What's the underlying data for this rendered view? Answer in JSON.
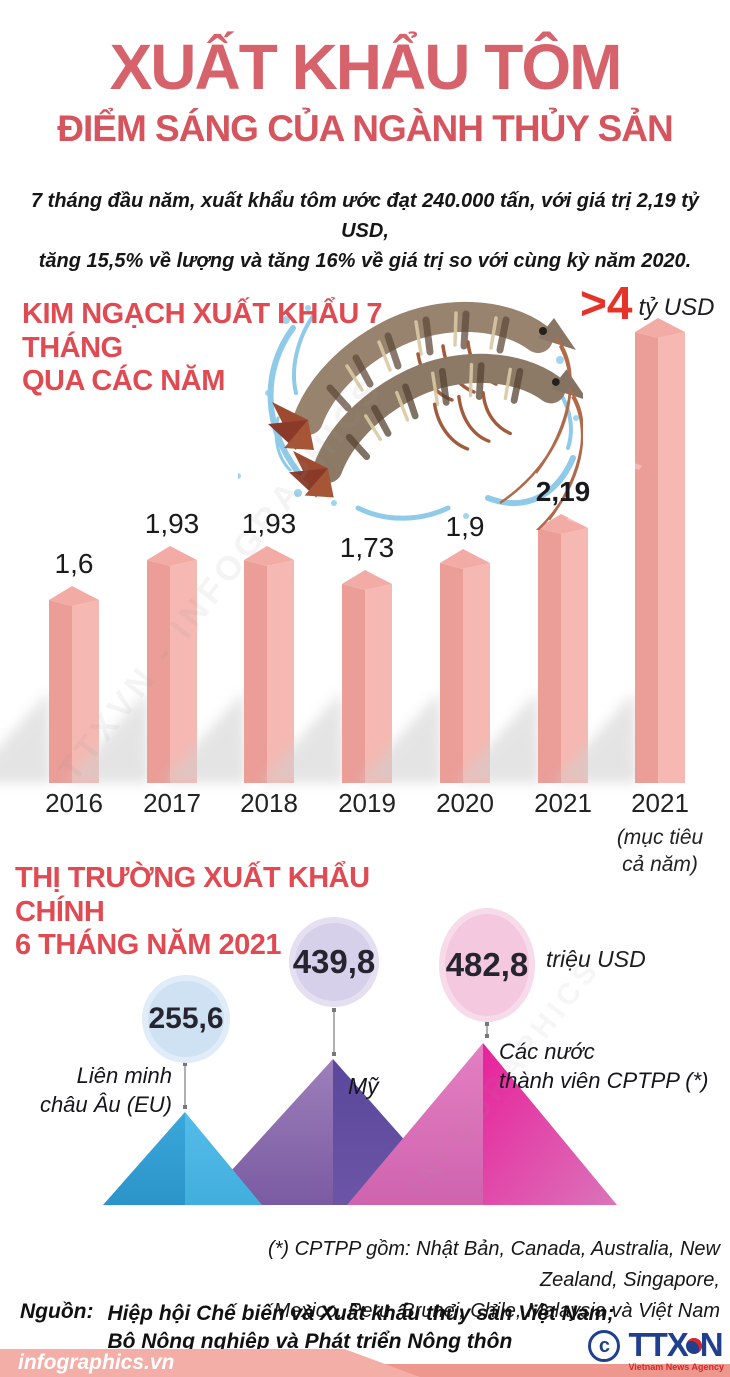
{
  "title": {
    "main": "XUẤT KHẨU TÔM",
    "subtitle": "ĐIỂM SÁNG CỦA NGÀNH THỦY SẢN"
  },
  "intro_lines": [
    "7 tháng đầu năm, xuất khẩu tôm ước đạt 240.000 tấn, với giá trị 2,19 tỷ USD,",
    "tăng 15,5% về lượng và tăng 16% về giá trị so với cùng kỳ năm 2020."
  ],
  "sections": {
    "bars": {
      "header_lines": [
        "KIM NGẠCH XUẤT KHẨU 7 THÁNG",
        "QUA CÁC NĂM"
      ],
      "target_value": ">4",
      "target_unit": "tỷ USD",
      "target_sublabel_lines": [
        "(mục tiêu",
        "cả năm)"
      ]
    },
    "markets": {
      "header_lines": [
        "THỊ TRƯỜNG XUẤT KHẨU CHÍNH",
        "6 THÁNG NĂM 2021"
      ],
      "points": [
        {
          "value": "255,6",
          "label_lines": [
            "Liên minh",
            "châu Âu (EU)"
          ]
        },
        {
          "value": "439,8",
          "label": "Mỹ"
        },
        {
          "value": "482,8",
          "unit": "triệu USD",
          "label_lines": [
            "Các nước",
            "thành viên CPTPP (*)"
          ]
        }
      ]
    }
  },
  "chart_data": [
    {
      "type": "bar",
      "title": "KIM NGẠCH XUẤT KHẨU 7 THÁNG QUA CÁC NĂM",
      "unit": "tỷ USD",
      "categories": [
        "2016",
        "2017",
        "2018",
        "2019",
        "2020",
        "2021",
        "2021"
      ],
      "category_note_last": "(mục tiêu cả năm)",
      "values": [
        1.6,
        1.93,
        1.93,
        1.73,
        1.9,
        2.19,
        4
      ],
      "values_display": [
        "1,6",
        "1,93",
        "1,93",
        "1,73",
        "1,9",
        "2,19",
        ">4"
      ],
      "emphasized_category": "2021",
      "ylim": [
        0,
        4.3
      ],
      "legend": "none",
      "style": "3d pink columns"
    },
    {
      "type": "bar",
      "title": "THỊ TRƯỜNG XUẤT KHẨU CHÍNH 6 THÁNG NĂM 2021",
      "unit": "triệu USD",
      "categories": [
        "Liên minh châu Âu (EU)",
        "Mỹ",
        "Các nước thành viên CPTPP (*)"
      ],
      "values": [
        255.6,
        439.8,
        482.8
      ],
      "values_display": [
        "255,6",
        "439,8",
        "482,8"
      ],
      "legend": "none",
      "style": "mountain triangles with value bubbles"
    }
  ],
  "footnote_lines": [
    "(*) CPTPP gồm: Nhật Bản, Canada, Australia, New Zealand, Singapore,",
    "Mexico, Peru, Brunei, Chile, Malaysia và Việt Nam"
  ],
  "source": {
    "label": "Nguồn:",
    "lines": [
      "Hiệp hội Chế biến và Xuất khẩu thủy sản Việt Nam;",
      "Bộ Nông nghiệp và Phát triển Nông thôn"
    ]
  },
  "footer": {
    "site": "infographics.vn"
  },
  "agency_logo": {
    "copyright": "©",
    "name_left": "TTX",
    "name_right": "N",
    "caption": "Vietnam News Agency"
  },
  "watermarks": [
    "TTXVN - INFOGRAPHICS",
    "VNA",
    "INFOGRAPHICS"
  ],
  "colors": {
    "title_red": "#d6636c",
    "header_red": "#e04a52",
    "accent_red": "#e5332a",
    "bar_left": "#eb9d98",
    "bar_right": "#f6b8b2",
    "bar_top": "#f3aba5",
    "bubble_eu": "#cfe2f3",
    "bubble_us": "#d7d0ea",
    "bubble_cptpp": "#f4c8df",
    "mountain_blue_left": "#2d9bd0",
    "mountain_blue_right": "#4db7e6",
    "mountain_purple_left": "#8f6fae",
    "mountain_purple_right": "#5e4a9e",
    "mountain_pink_left": "#d96cb4",
    "mountain_pink_right": "#e7219a",
    "footer_strip": "#ee978e",
    "agency_blue": "#20408f",
    "agency_red": "#d42a27"
  }
}
